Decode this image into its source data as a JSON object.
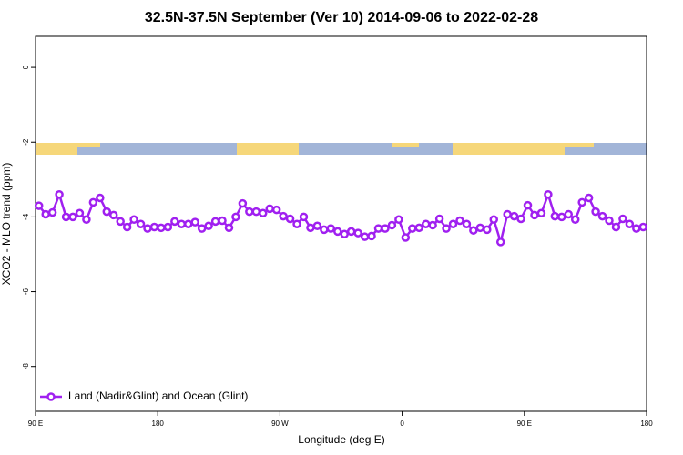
{
  "chart_data": {
    "type": "line",
    "title": "32.5N-37.5N September (Ver 10)   2014-09-06 to 2022-02-28",
    "x_label": "Longitude (deg E)",
    "y_label": "XCO2 - MLO trend (ppm)",
    "xlim": [
      90,
      540
    ],
    "xticks": [
      {
        "value": 90,
        "label": "90 E"
      },
      {
        "value": 180,
        "label": "180"
      },
      {
        "value": 270,
        "label": "90 W"
      },
      {
        "value": 360,
        "label": "0"
      },
      {
        "value": 450,
        "label": "90 E"
      },
      {
        "value": 540,
        "label": "180"
      }
    ],
    "ylim": [
      -9.2,
      0.83
    ],
    "yticks": [
      0,
      -2,
      -4,
      -6,
      -8
    ],
    "legend": "bottom-left",
    "x": [
      92.5,
      97.5,
      102.5,
      107.5,
      112.5,
      117.5,
      122.5,
      127.5,
      132.5,
      137.5,
      142.5,
      147.5,
      152.5,
      157.5,
      162.5,
      167.5,
      172.5,
      177.5,
      182.5,
      187.5,
      192.5,
      197.5,
      202.5,
      207.5,
      212.5,
      217.5,
      222.5,
      227.5,
      232.5,
      237.5,
      242.5,
      247.5,
      252.5,
      257.5,
      262.5,
      267.5,
      272.5,
      277.5,
      282.5,
      287.5,
      292.5,
      297.5,
      302.5,
      307.5,
      312.5,
      317.5,
      322.5,
      327.5,
      332.5,
      337.5,
      342.5,
      347.5,
      352.5,
      357.5,
      362.5,
      367.5,
      372.5,
      377.5,
      382.5,
      387.5,
      392.5,
      397.5,
      402.5,
      407.5,
      412.5,
      417.5,
      422.5,
      427.5,
      432.5,
      437.5,
      442.5,
      447.5,
      452.5,
      457.5,
      462.5,
      467.5,
      472.5,
      477.5,
      482.5,
      487.5,
      492.5,
      497.5,
      502.5,
      507.5,
      512.5,
      517.5,
      522.5,
      527.5,
      532.5,
      537.5
    ],
    "series": [
      {
        "name": "Land (Nadir&Glint) and Ocean (Glint)",
        "color": "#a020f0",
        "values": [
          -3.7,
          -3.93,
          -3.88,
          -3.4,
          -4.0,
          -4.0,
          -3.9,
          -4.07,
          -3.61,
          -3.49,
          -3.86,
          -3.95,
          -4.12,
          -4.27,
          -4.07,
          -4.19,
          -4.31,
          -4.27,
          -4.29,
          -4.27,
          -4.12,
          -4.19,
          -4.19,
          -4.14,
          -4.31,
          -4.24,
          -4.12,
          -4.1,
          -4.29,
          -4.0,
          -3.64,
          -3.86,
          -3.86,
          -3.9,
          -3.78,
          -3.81,
          -3.98,
          -4.05,
          -4.19,
          -4.0,
          -4.29,
          -4.24,
          -4.34,
          -4.31,
          -4.39,
          -4.46,
          -4.39,
          -4.43,
          -4.53,
          -4.51,
          -4.31,
          -4.31,
          -4.22,
          -4.07,
          -4.55,
          -4.31,
          -4.29,
          -4.19,
          -4.22,
          -4.05,
          -4.31,
          -4.19,
          -4.1,
          -4.19,
          -4.36,
          -4.29,
          -4.34,
          -4.07,
          -4.67,
          -3.93,
          -3.98,
          -4.05,
          -3.69,
          -3.95,
          -3.9,
          -3.4,
          -3.98,
          -4.0,
          -3.93,
          -4.07,
          -3.61,
          -3.49,
          -3.86,
          -3.98,
          -4.1,
          -4.27,
          -4.05,
          -4.19,
          -4.31,
          -4.27
        ]
      }
    ]
  }
}
